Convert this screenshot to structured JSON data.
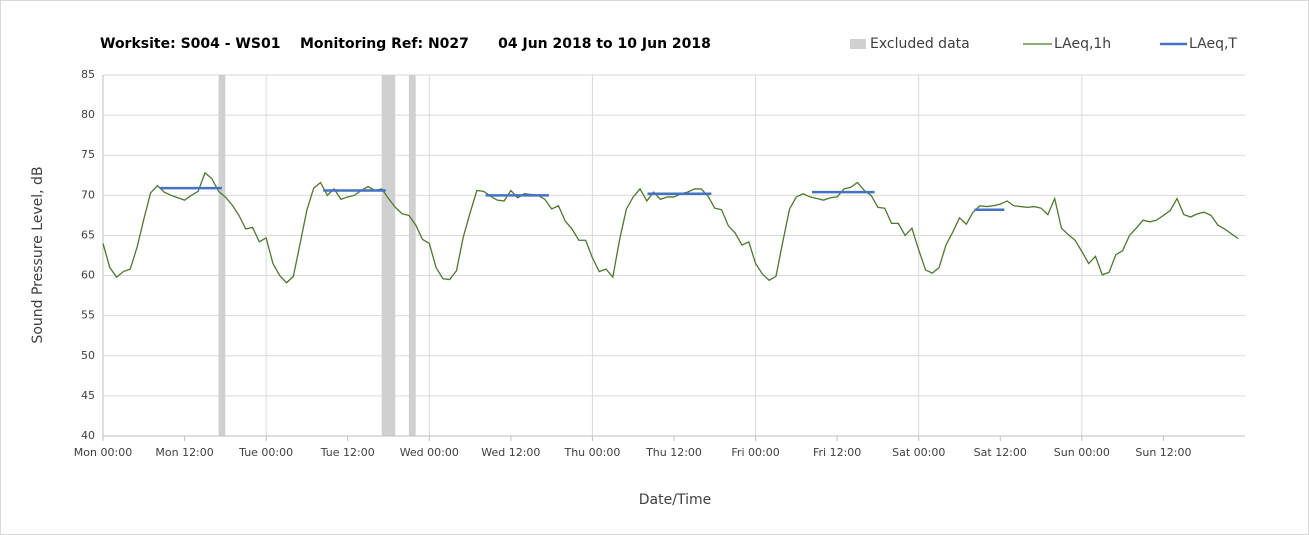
{
  "chart_data": {
    "type": "line",
    "title": "Worksite: S004 - WS01    Monitoring Ref: N027      04 Jun 2018 to 10 Jun 2018",
    "x_label": "Date/Time",
    "y_label": "Sound Pressure Level, dB",
    "xlim": [
      0,
      168
    ],
    "ylim": [
      40,
      85
    ],
    "yticks": [
      40,
      45,
      50,
      55,
      60,
      65,
      70,
      75,
      80,
      85
    ],
    "xticks": [
      {
        "value": 0,
        "label": "Mon 00:00"
      },
      {
        "value": 12,
        "label": "Mon 12:00"
      },
      {
        "value": 24,
        "label": "Tue 00:00"
      },
      {
        "value": 36,
        "label": "Tue 12:00"
      },
      {
        "value": 48,
        "label": "Wed 00:00"
      },
      {
        "value": 60,
        "label": "Wed 12:00"
      },
      {
        "value": 72,
        "label": "Thu 00:00"
      },
      {
        "value": 84,
        "label": "Thu 12:00"
      },
      {
        "value": 96,
        "label": "Fri 00:00"
      },
      {
        "value": 108,
        "label": "Fri 12:00"
      },
      {
        "value": 120,
        "label": "Sat 00:00"
      },
      {
        "value": 132,
        "label": "Sat 12:00"
      },
      {
        "value": 144,
        "label": "Sun 00:00"
      },
      {
        "value": 156,
        "label": "Sun 12:00"
      }
    ],
    "grid": true,
    "legend": "top-right",
    "excluded_name": "Excluded data",
    "excluded_color": "#d0d0d0",
    "excluded": [
      [
        17,
        18
      ],
      [
        41,
        43
      ],
      [
        45,
        46
      ]
    ],
    "series": [
      {
        "name": "LAeq,1h",
        "color": "#4a7a2a",
        "x": [
          0,
          1,
          2,
          3,
          4,
          5,
          6,
          7,
          8,
          9,
          10,
          11,
          12,
          13,
          14,
          15,
          16,
          17,
          18,
          19,
          20,
          21,
          22,
          23,
          24,
          25,
          26,
          27,
          28,
          29,
          30,
          31,
          32,
          33,
          34,
          35,
          36,
          37,
          38,
          39,
          40,
          41,
          42,
          43,
          44,
          45,
          46,
          47,
          48,
          49,
          50,
          51,
          52,
          53,
          54,
          55,
          56,
          57,
          58,
          59,
          60,
          61,
          62,
          63,
          64,
          65,
          66,
          67,
          68,
          69,
          70,
          71,
          72,
          73,
          74,
          75,
          76,
          77,
          78,
          79,
          80,
          81,
          82,
          83,
          84,
          85,
          86,
          87,
          88,
          89,
          90,
          91,
          92,
          93,
          94,
          95,
          96,
          97,
          98,
          99,
          100,
          101,
          102,
          103,
          104,
          105,
          106,
          107,
          108,
          109,
          110,
          111,
          112,
          113,
          114,
          115,
          116,
          117,
          118,
          119,
          120,
          121,
          122,
          123,
          124,
          125,
          126,
          127,
          128,
          129,
          130,
          131,
          132,
          133,
          134,
          135,
          136,
          137,
          138,
          139,
          140,
          141,
          142,
          143,
          144,
          145,
          146,
          147,
          148,
          149,
          150,
          151,
          152,
          153,
          154,
          155,
          156,
          157,
          158,
          159,
          160,
          161,
          162,
          163,
          164,
          165,
          166,
          167
        ],
        "values": [
          64,
          61,
          59.8,
          60.5,
          60.8,
          63.5,
          67,
          70.3,
          71.2,
          70.4,
          70,
          69.7,
          69.4,
          70,
          70.5,
          72.8,
          72.1,
          70.5,
          69.8,
          68.8,
          67.5,
          65.8,
          66,
          64.2,
          64.7,
          61.5,
          60,
          59.1,
          59.9,
          64,
          68.2,
          70.9,
          71.6,
          70,
          70.8,
          69.5,
          69.8,
          70,
          70.6,
          71.1,
          70.6,
          70.8,
          69.6,
          68.5,
          67.7,
          67.5,
          66.3,
          64.5,
          64,
          61,
          59.6,
          59.5,
          60.6,
          64.8,
          67.8,
          70.6,
          70.5,
          69.9,
          69.4,
          69.3,
          70.6,
          69.7,
          70.2,
          70.1,
          70,
          69.5,
          68.3,
          68.7,
          66.8,
          65.8,
          64.4,
          64.4,
          62.2,
          60.5,
          60.8,
          59.8,
          64.5,
          68.3,
          69.8,
          70.8,
          69.3,
          70.4,
          69.5,
          69.8,
          69.8,
          70.2,
          70.4,
          70.8,
          70.8,
          69.9,
          68.4,
          68.2,
          66.2,
          65.3,
          63.8,
          64.2,
          61.5,
          60.2,
          59.4,
          59.9,
          64.2,
          68.3,
          69.8,
          70.2,
          69.8,
          69.6,
          69.4,
          69.7,
          69.8,
          70.8,
          71,
          71.6,
          70.6,
          70,
          68.5,
          68.4,
          66.5,
          66.5,
          65,
          65.9,
          63.2,
          60.7,
          60.3,
          61,
          63.8,
          65.4,
          67.2,
          66.4,
          67.9,
          68.7,
          68.6,
          68.7,
          68.9,
          69.3,
          68.7,
          68.6,
          68.5,
          68.6,
          68.4,
          67.6,
          69.6,
          65.9,
          65.1,
          64.4,
          63,
          61.5,
          62.4,
          60.1,
          60.4,
          62.6,
          63.1,
          65,
          65.9,
          66.9,
          66.7,
          66.9,
          67.5,
          68.1,
          69.6,
          67.6,
          67.3,
          67.7,
          67.9,
          67.5,
          66.3,
          65.8,
          65.2,
          64.6
        ]
      },
      {
        "name": "LAeq,T",
        "color": "#4472c4",
        "x": [
          [
            8.4,
            17.5
          ],
          [
            32.4,
            41.6
          ],
          [
            56.3,
            65.6
          ],
          [
            80.1,
            89.5
          ],
          [
            104.3,
            113.5
          ],
          [
            128.2,
            132.6
          ]
        ],
        "values": [
          70.9,
          70.6,
          70.0,
          70.2,
          70.4,
          68.2
        ]
      }
    ]
  }
}
